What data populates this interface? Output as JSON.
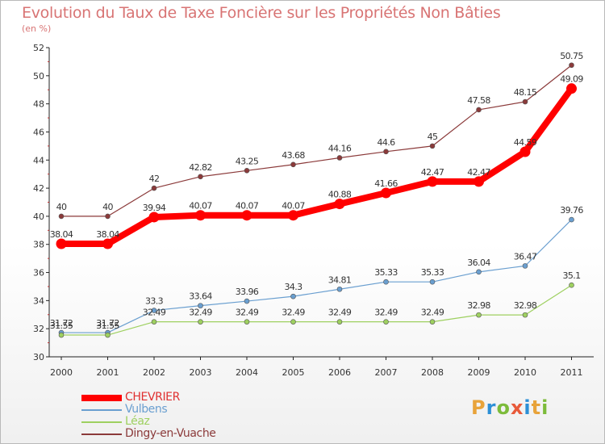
{
  "title": "Evolution du Taux de Taxe Foncière sur les Propriétés Non Bâties",
  "unit": "(en %)",
  "logo": {
    "letters": [
      "P",
      "r",
      "o",
      "x",
      "i",
      "t",
      "i"
    ],
    "colors": [
      "#e8a33a",
      "#2c8fd6",
      "#7cbb3a",
      "#e85a3a",
      "#2c8fd6",
      "#e8a33a",
      "#7cbb3a"
    ]
  },
  "chart_data": {
    "type": "line",
    "title": "Evolution du Taux de Taxe Foncière sur les Propriétés Non Bâties",
    "ylabel": "(en %)",
    "xlabel": "",
    "ylim": [
      30,
      52
    ],
    "yticks": [
      30,
      32,
      34,
      36,
      38,
      40,
      42,
      44,
      46,
      48,
      50,
      52
    ],
    "grid": false,
    "legend": "bottom-left",
    "categories": [
      "2000",
      "2001",
      "2002",
      "2003",
      "2004",
      "2005",
      "2006",
      "2007",
      "2008",
      "2009",
      "2010",
      "2011"
    ],
    "series": [
      {
        "name": "CHEVRIER",
        "color": "#ff0000",
        "values": [
          38.04,
          38.04,
          39.94,
          40.07,
          40.07,
          40.07,
          40.88,
          41.66,
          42.47,
          42.47,
          44.59,
          49.09
        ],
        "labels": [
          "38.04",
          "38.04",
          "39.94",
          "40.07",
          "40.07",
          "40.07",
          "40.88",
          "41.66",
          "42.47",
          "42.47",
          "44.59",
          "49.09"
        ]
      },
      {
        "name": "Vulbens",
        "color": "#6a9fd0",
        "values": [
          31.72,
          31.72,
          33.3,
          33.64,
          33.96,
          34.3,
          34.81,
          35.33,
          35.33,
          36.04,
          36.47,
          39.76
        ],
        "labels": [
          "31.72",
          "31.72",
          "33.3",
          "33.64",
          "33.96",
          "34.3",
          "34.81",
          "35.33",
          "35.33",
          "36.04",
          "36.47",
          "39.76"
        ]
      },
      {
        "name": "Léaz",
        "color": "#9ed060",
        "values": [
          31.55,
          31.55,
          32.49,
          32.49,
          32.49,
          32.49,
          32.49,
          32.49,
          32.49,
          32.98,
          32.98,
          35.1
        ],
        "labels": [
          "31.55",
          "31.55",
          "32.49",
          "32.49",
          "32.49",
          "32.49",
          "32.49",
          "32.49",
          "32.49",
          "32.98",
          "32.98",
          "35.1"
        ]
      },
      {
        "name": "Dingy-en-Vuache",
        "color": "#8b3a3a",
        "values": [
          40,
          40,
          42,
          42.82,
          43.25,
          43.68,
          44.16,
          44.6,
          45,
          47.58,
          48.15,
          50.75
        ],
        "labels": [
          "40",
          "40",
          "42",
          "42.82",
          "43.25",
          "43.68",
          "44.16",
          "44.6",
          "45",
          "47.58",
          "48.15",
          "50.75"
        ]
      }
    ]
  }
}
